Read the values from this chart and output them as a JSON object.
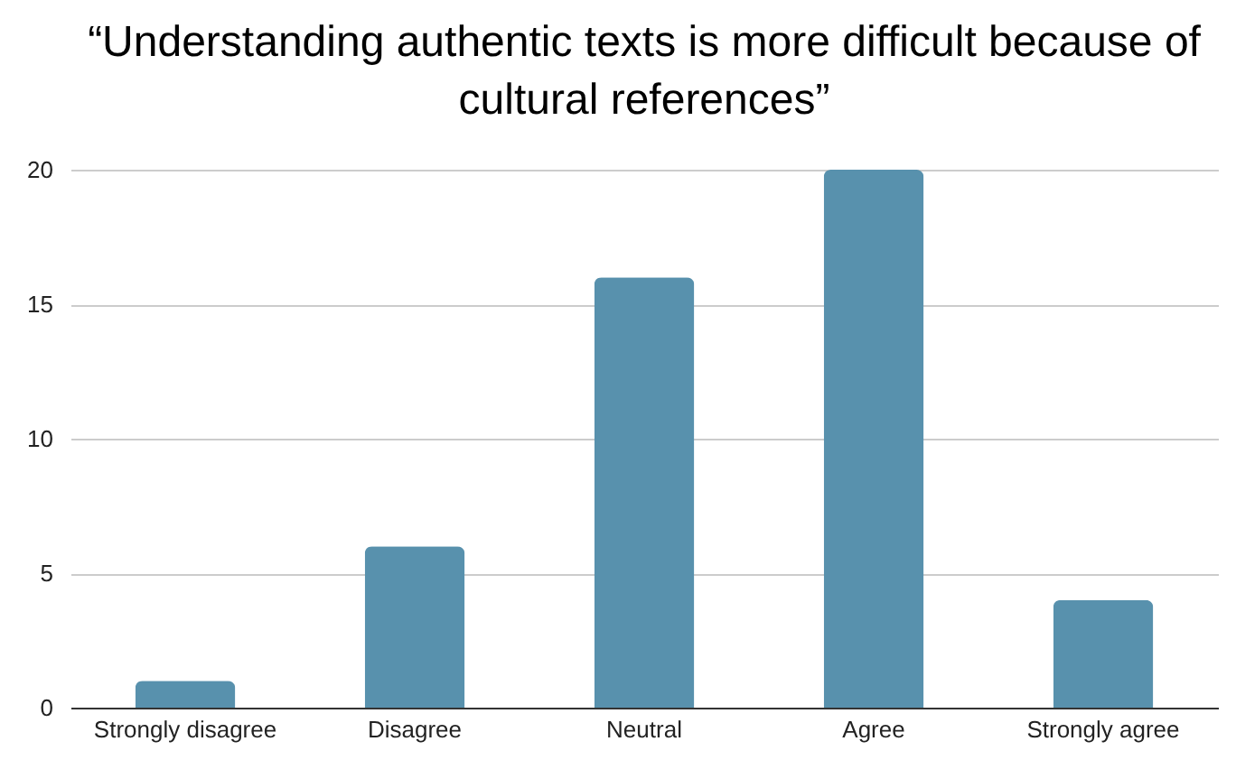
{
  "chart_data": {
    "type": "bar",
    "title": "“Understanding authentic texts is more difficult because of cultural references”",
    "categories": [
      "Strongly disagree",
      "Disagree",
      "Neutral",
      "Agree",
      "Strongly agree"
    ],
    "values": [
      1,
      6,
      16,
      20,
      4
    ],
    "color": "#5891ad",
    "ylim": [
      0,
      20
    ],
    "yticks": [
      0,
      5,
      10,
      15,
      20
    ],
    "grid": "y"
  }
}
